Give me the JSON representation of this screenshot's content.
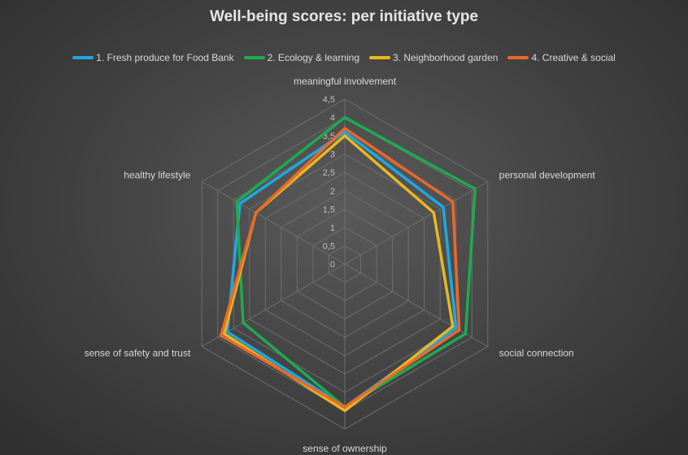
{
  "chart_data": {
    "type": "radar",
    "title": "Well-being scores: per initiative type",
    "axes": [
      "meaningful involvement",
      "personal development",
      "social connection",
      "sense of ownership",
      "sense of safety and trust",
      "healthy lifestyle"
    ],
    "ticks": [
      "0",
      "0,5",
      "1",
      "1,5",
      "2",
      "2,5",
      "3",
      "3,5",
      "4",
      "4,5"
    ],
    "rmax": 4.5,
    "grid": true,
    "legend_position": "top",
    "series": [
      {
        "name": "1. Fresh produce for Food Bank",
        "color": "#1fa8e0",
        "values": [
          3.6,
          3.1,
          3.5,
          3.9,
          3.7,
          3.3
        ]
      },
      {
        "name": "2. Ecology & learning",
        "color": "#1faa52",
        "values": [
          4.0,
          4.1,
          3.8,
          3.9,
          3.2,
          3.4
        ]
      },
      {
        "name": "3. Neighborhood garden",
        "color": "#e8b820",
        "values": [
          3.5,
          2.8,
          3.4,
          4.0,
          3.8,
          2.8
        ]
      },
      {
        "name": "4. Creative & social",
        "color": "#e9692a",
        "values": [
          3.7,
          3.4,
          3.6,
          3.9,
          3.9,
          2.8
        ]
      }
    ]
  }
}
